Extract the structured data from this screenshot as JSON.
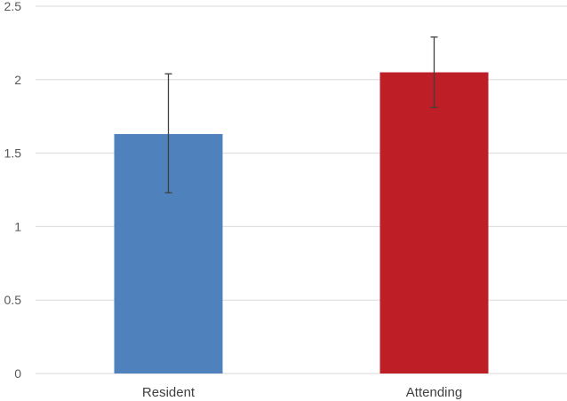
{
  "chart_data": {
    "type": "bar",
    "categories": [
      "Resident",
      "Attending"
    ],
    "values": [
      1.63,
      2.05
    ],
    "error_low": [
      1.23,
      1.81
    ],
    "error_high": [
      2.04,
      2.29
    ],
    "colors": [
      "#4f81bd",
      "#be1e25"
    ],
    "ylim": [
      0,
      2.5
    ],
    "yticks": [
      "0",
      "0.5",
      "1",
      "1.5",
      "2",
      "2.5"
    ],
    "ytick_values": [
      0,
      0.5,
      1,
      1.5,
      2,
      2.5
    ],
    "grid": true,
    "title": "",
    "xlabel": "",
    "ylabel": ""
  }
}
